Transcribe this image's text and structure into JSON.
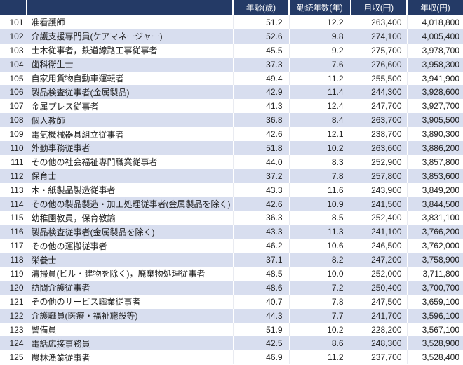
{
  "colors": {
    "header_bg": "#243A66",
    "header_text": "#FFFFFF",
    "row_alt_bg": "#D8DEEF",
    "row_white_bg": "#FFFFFF",
    "body_text": "#1F1F1F"
  },
  "chart_data": {
    "type": "table",
    "title": "",
    "columns": [
      "",
      "",
      "年齢(歳)",
      "勤続年数(年)",
      "月収(円)",
      "年収(円)"
    ],
    "rows": [
      {
        "rank": "101",
        "name": "准看護師",
        "age": "51.2",
        "tenure": "12.2",
        "monthly": "263,400",
        "annual": "4,018,800"
      },
      {
        "rank": "102",
        "name": "介護支援専門員(ケアマネージャー)",
        "age": "52.6",
        "tenure": "9.8",
        "monthly": "274,100",
        "annual": "4,005,400"
      },
      {
        "rank": "103",
        "name": "土木従事者，鉄道線路工事従事者",
        "age": "45.5",
        "tenure": "9.2",
        "monthly": "275,700",
        "annual": "3,978,700"
      },
      {
        "rank": "104",
        "name": "歯科衛生士",
        "age": "37.3",
        "tenure": "7.6",
        "monthly": "276,600",
        "annual": "3,958,300"
      },
      {
        "rank": "105",
        "name": "自家用貨物自動車運転者",
        "age": "49.4",
        "tenure": "11.2",
        "monthly": "255,500",
        "annual": "3,941,900"
      },
      {
        "rank": "106",
        "name": "製品検査従事者(金属製品)",
        "age": "42.9",
        "tenure": "11.4",
        "monthly": "244,300",
        "annual": "3,928,600"
      },
      {
        "rank": "107",
        "name": "金属プレス従事者",
        "age": "41.3",
        "tenure": "12.4",
        "monthly": "247,700",
        "annual": "3,927,700"
      },
      {
        "rank": "108",
        "name": "個人教師",
        "age": "36.8",
        "tenure": "8.4",
        "monthly": "263,700",
        "annual": "3,905,500"
      },
      {
        "rank": "109",
        "name": "電気機械器具組立従事者",
        "age": "42.6",
        "tenure": "12.1",
        "monthly": "238,700",
        "annual": "3,890,300"
      },
      {
        "rank": "110",
        "name": "外勤事務従事者",
        "age": "51.8",
        "tenure": "10.2",
        "monthly": "263,600",
        "annual": "3,886,200"
      },
      {
        "rank": "111",
        "name": "その他の社会福祉専門職業従事者",
        "age": "44.0",
        "tenure": "8.3",
        "monthly": "252,900",
        "annual": "3,857,800"
      },
      {
        "rank": "112",
        "name": "保育士",
        "age": "37.2",
        "tenure": "7.8",
        "monthly": "257,800",
        "annual": "3,853,600"
      },
      {
        "rank": "113",
        "name": "木・紙製品製造従事者",
        "age": "43.3",
        "tenure": "11.6",
        "monthly": "243,900",
        "annual": "3,849,200"
      },
      {
        "rank": "114",
        "name": "その他の製品製造・加工処理従事者(金属製品を除く)",
        "age": "42.6",
        "tenure": "10.9",
        "monthly": "241,500",
        "annual": "3,844,500"
      },
      {
        "rank": "115",
        "name": "幼稚園教員，保育教諭",
        "age": "36.3",
        "tenure": "8.5",
        "monthly": "252,400",
        "annual": "3,831,100"
      },
      {
        "rank": "116",
        "name": "製品検査従事者(金属製品を除く)",
        "age": "43.3",
        "tenure": "11.3",
        "monthly": "241,100",
        "annual": "3,766,200"
      },
      {
        "rank": "117",
        "name": "その他の運搬従事者",
        "age": "46.2",
        "tenure": "10.6",
        "monthly": "246,500",
        "annual": "3,762,000"
      },
      {
        "rank": "118",
        "name": "栄養士",
        "age": "37.1",
        "tenure": "8.2",
        "monthly": "247,200",
        "annual": "3,758,900"
      },
      {
        "rank": "119",
        "name": "清掃員(ビル・建物を除く)，廃棄物処理従事者",
        "age": "48.5",
        "tenure": "10.0",
        "monthly": "252,000",
        "annual": "3,711,800"
      },
      {
        "rank": "120",
        "name": "訪問介護従事者",
        "age": "48.6",
        "tenure": "7.2",
        "monthly": "250,400",
        "annual": "3,700,700"
      },
      {
        "rank": "121",
        "name": "その他のサービス職業従事者",
        "age": "40.7",
        "tenure": "7.8",
        "monthly": "247,500",
        "annual": "3,659,100"
      },
      {
        "rank": "122",
        "name": "介護職員(医療・福祉施設等)",
        "age": "44.3",
        "tenure": "7.7",
        "monthly": "241,700",
        "annual": "3,596,100"
      },
      {
        "rank": "123",
        "name": "警備員",
        "age": "51.9",
        "tenure": "10.2",
        "monthly": "228,200",
        "annual": "3,567,100"
      },
      {
        "rank": "124",
        "name": "電話応接事務員",
        "age": "42.5",
        "tenure": "8.6",
        "monthly": "248,300",
        "annual": "3,528,900"
      },
      {
        "rank": "125",
        "name": "農林漁業従事者",
        "age": "46.9",
        "tenure": "11.2",
        "monthly": "237,700",
        "annual": "3,528,400"
      }
    ]
  }
}
